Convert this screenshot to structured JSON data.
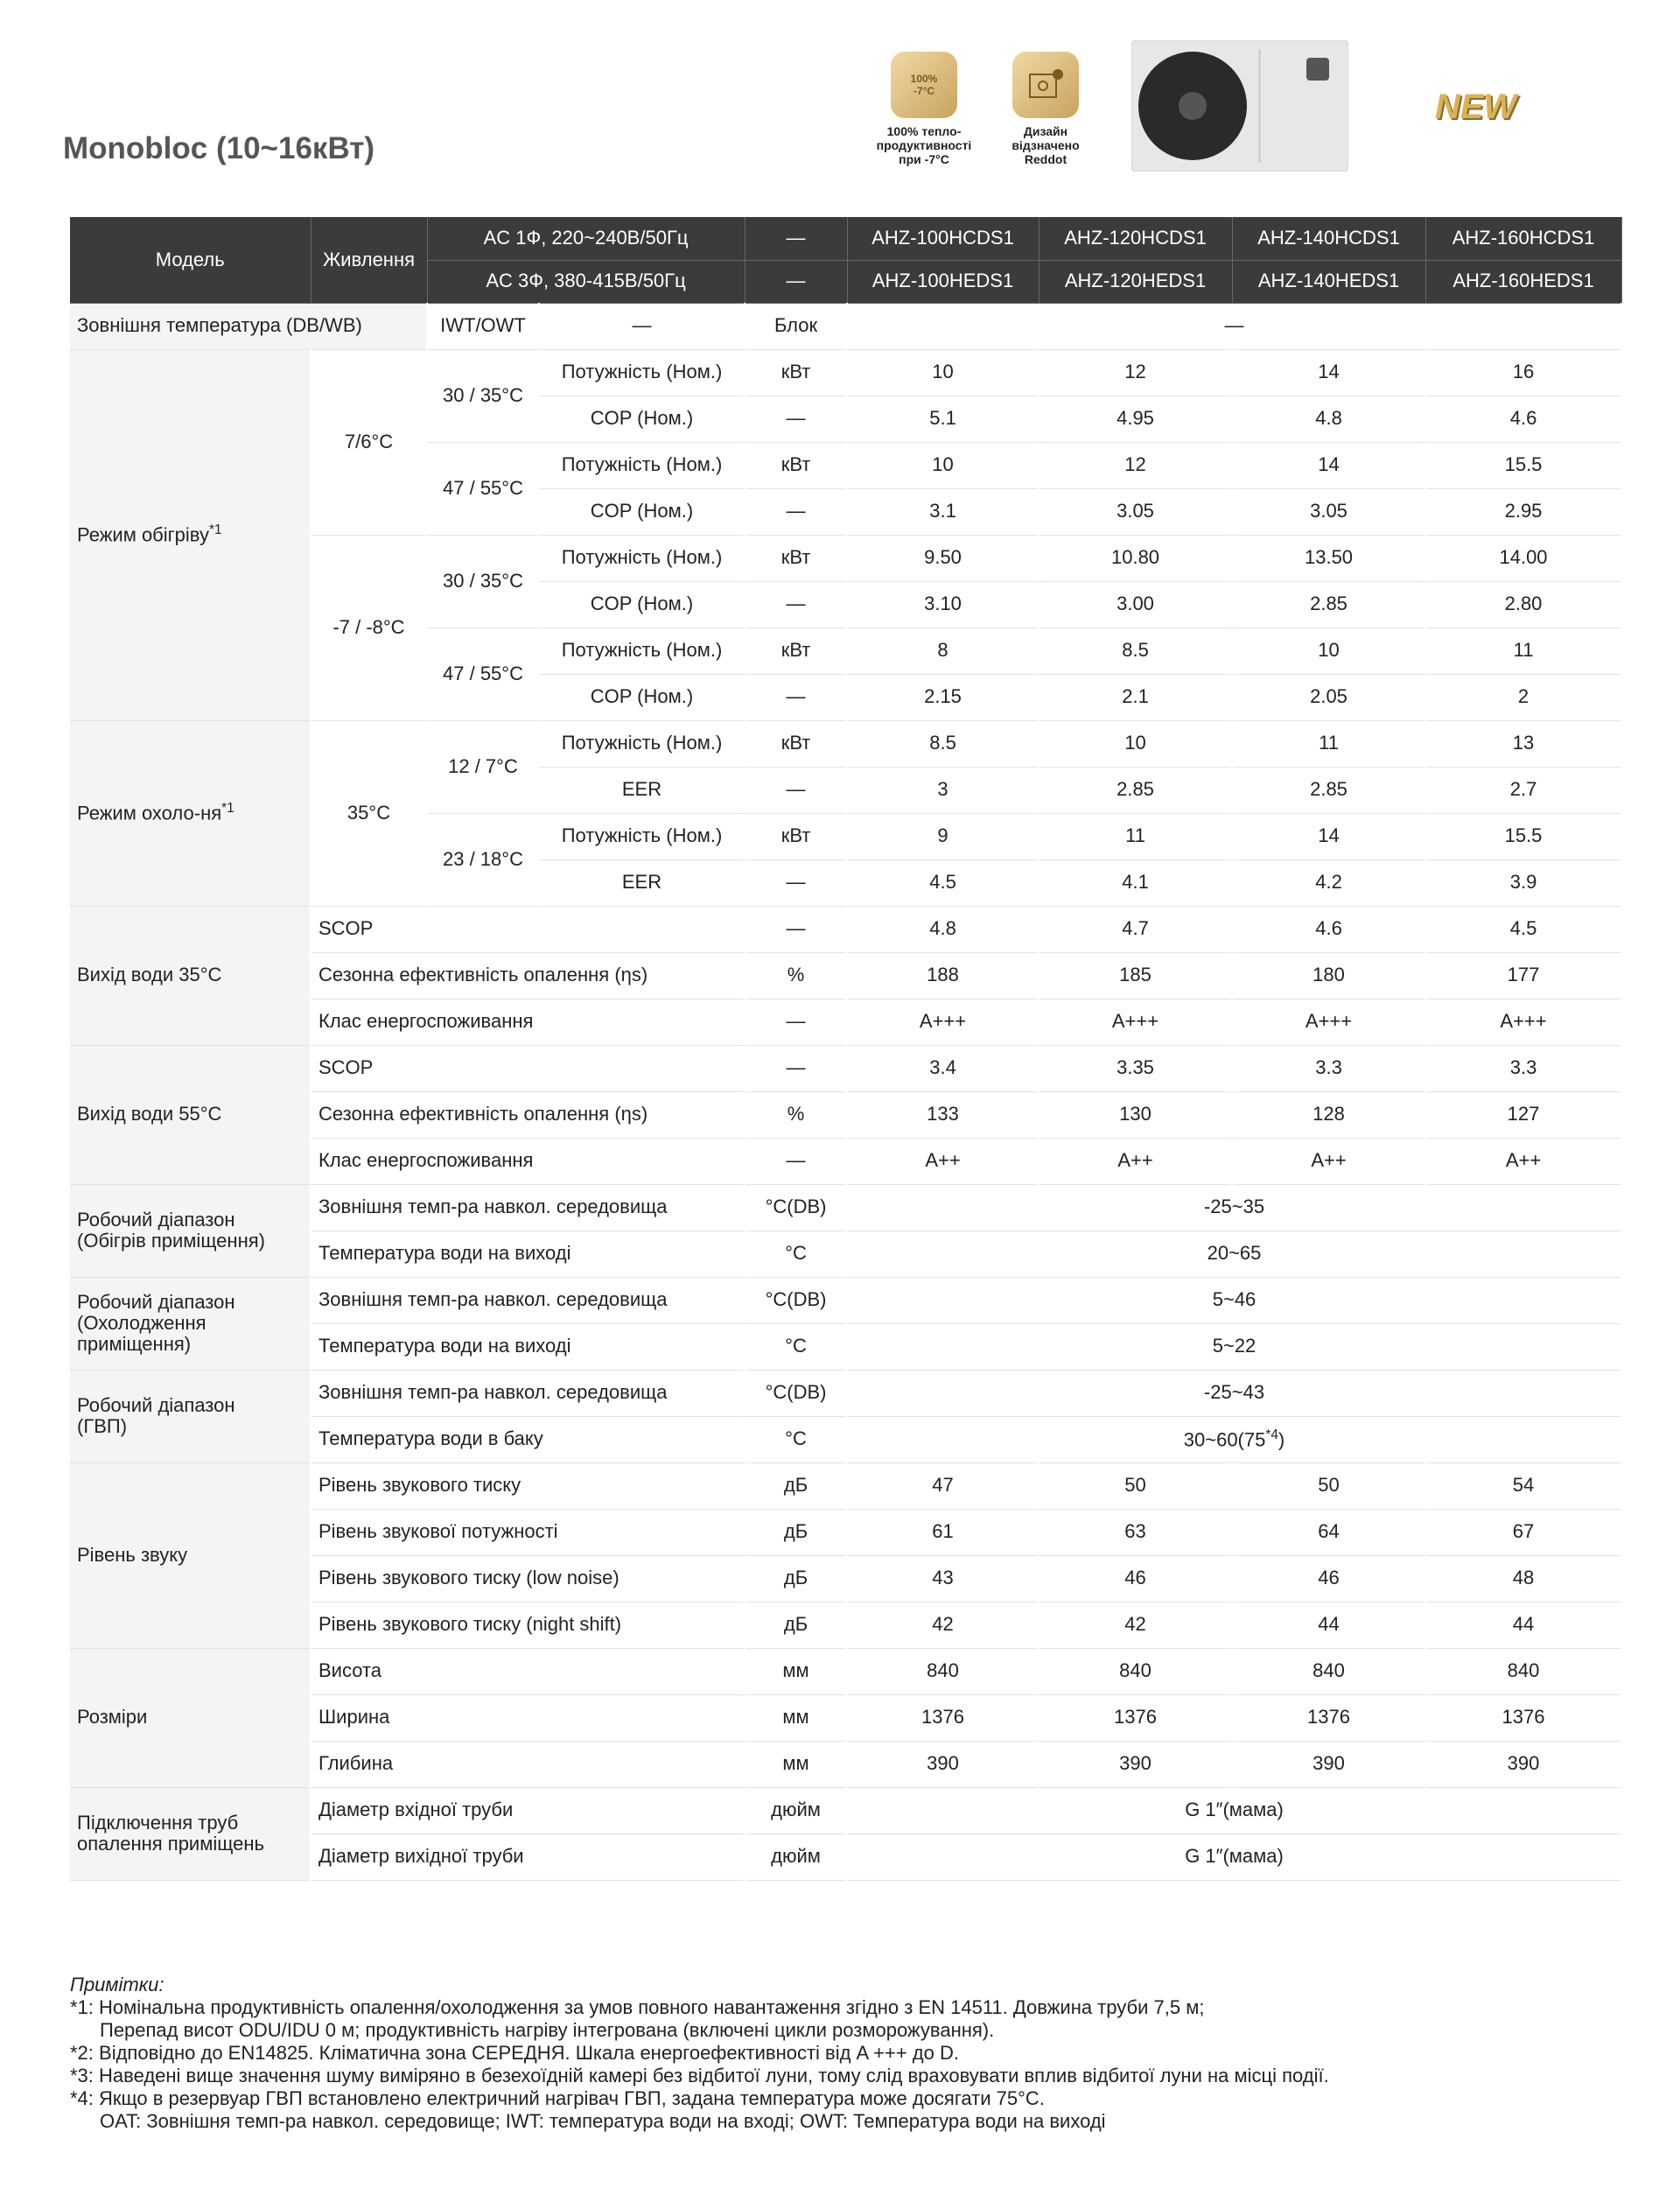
{
  "header": {
    "title": "Monobloc (10~16кВт)",
    "badges": [
      {
        "icon": [
          "100%",
          "-7°C"
        ],
        "caption": "100% тепло-\nпродуктивності\nпри -7°C"
      },
      {
        "icon": [],
        "caption": "Дизайн\nвідзначено\nReddot"
      }
    ],
    "new_label": "NEW"
  },
  "table": {
    "head": [
      [
        "Модель",
        "Живлення",
        "AC 1Ф, 220~240В/50Гц",
        "—",
        "AHZ-100HCDS1",
        "AHZ-120HCDS1",
        "AHZ-140HCDS1",
        "AHZ-160HCDS1"
      ],
      [
        "AC 3Ф, 380-415В/50Гц",
        "—",
        "AHZ-100HEDS1",
        "AHZ-120HEDS1",
        "AHZ-140HEDS1",
        "AHZ-160HEDS1"
      ]
    ],
    "rows": [
      [
        "Зовнішня температура (DB/WB)",
        "IWT/OWT",
        "—",
        "Блок",
        "—"
      ],
      [
        {
          "text": "Режим обігріву",
          "note": "*1"
        },
        "7/6°C",
        "30 / 35°C",
        "Потужність (Ном.)",
        "кВт",
        "10",
        "12",
        "14",
        "16"
      ],
      [
        "COP (Ном.)",
        "—",
        "5.1",
        "4.95",
        "4.8",
        "4.6"
      ],
      [
        "47 / 55°C",
        "Потужність (Ном.)",
        "кВт",
        "10",
        "12",
        "14",
        "15.5"
      ],
      [
        "COP (Ном.)",
        "—",
        "3.1",
        "3.05",
        "3.05",
        "2.95"
      ],
      [
        "-7 / -8°C",
        "30 / 35°C",
        "Потужність (Ном.)",
        "кВт",
        "9.50",
        "10.80",
        "13.50",
        "14.00"
      ],
      [
        "COP (Ном.)",
        "—",
        "3.10",
        "3.00",
        "2.85",
        "2.80"
      ],
      [
        "47 / 55°C",
        "Потужність (Ном.)",
        "кВт",
        "8",
        "8.5",
        "10",
        "11"
      ],
      [
        "COP (Ном.)",
        "—",
        "2.15",
        "2.1",
        "2.05",
        "2"
      ],
      [
        {
          "text": "Режим охоло-ня",
          "note": "*1"
        },
        "35°C",
        "12 / 7°C",
        "Потужність (Ном.)",
        "кВт",
        "8.5",
        "10",
        "11",
        "13"
      ],
      [
        "EER",
        "—",
        "3",
        "2.85",
        "2.85",
        "2.7"
      ],
      [
        "23 / 18°C",
        "Потужність (Ном.)",
        "кВт",
        "9",
        "11",
        "14",
        "15.5"
      ],
      [
        "EER",
        "—",
        "4.5",
        "4.1",
        "4.2",
        "3.9"
      ],
      [
        "Вихід води 35°C",
        "SCOP",
        "—",
        "4.8",
        "4.7",
        "4.6",
        "4.5"
      ],
      [
        "Сезонна ефективність опалення (ηs)",
        "%",
        "188",
        "185",
        "180",
        "177"
      ],
      [
        "Клас енергоспоживання",
        "—",
        "A+++",
        "A+++",
        "A+++",
        "A+++"
      ],
      [
        "Вихід води 55°C",
        "SCOP",
        "—",
        "3.4",
        "3.35",
        "3.3",
        "3.3"
      ],
      [
        "Сезонна ефективність опалення (ηs)",
        "%",
        "133",
        "130",
        "128",
        "127"
      ],
      [
        "Клас енергоспоживання",
        "—",
        "A++",
        "A++",
        "A++",
        "A++"
      ],
      [
        "Робочий діапазон\n (Обігрів приміщення)",
        "Зовнішня темп-ра навкол. середовища",
        "°C(DB)",
        "-25~35"
      ],
      [
        "Температура води на виході",
        "°C",
        "20~65"
      ],
      [
        "Робочий діапазон\n(Охолодження\nприміщення)",
        "Зовнішня темп-ра навкол. середовища",
        "°C(DB)",
        "5~46"
      ],
      [
        "Температура води на виході",
        "°C",
        "5~22"
      ],
      [
        "Робочий діапазон\n(ГВП)",
        "Зовнішня темп-ра навкол. середовища",
        "°C(DB)",
        "-25~43"
      ],
      [
        "Температура води в баку",
        "°C",
        {
          "text": "30~60(75",
          "note": "*4",
          "tail": ")"
        }
      ],
      [
        "Рівень звуку",
        "Рівень звукового тиску",
        "дБ",
        "47",
        "50",
        "50",
        "54"
      ],
      [
        "Рівень звукової потужності",
        "дБ",
        "61",
        "63",
        "64",
        "67"
      ],
      [
        "Рівень звукового тиску (low noise)",
        "дБ",
        "43",
        "46",
        "46",
        "48"
      ],
      [
        "Рівень звукового тиску (night shift)",
        "дБ",
        "42",
        "42",
        "44",
        "44"
      ],
      [
        "Розміри",
        "Висота",
        "мм",
        "840",
        "840",
        "840",
        "840"
      ],
      [
        "Ширина",
        "мм",
        "1376",
        "1376",
        "1376",
        "1376"
      ],
      [
        "Глибина",
        "мм",
        "390",
        "390",
        "390",
        "390"
      ],
      [
        "Підключення труб\nопалення приміщень",
        "Діаметр вхідної труби",
        "дюйм",
        "G 1″(мама)"
      ],
      [
        "Діаметр вихідної труби",
        "дюйм",
        "G 1″(мама)"
      ]
    ]
  },
  "notes": {
    "title": "Примітки:",
    "lines": [
      "*1: Номінальна продуктивність опалення/охолодження за умов повного навантаження згідно з EN 14511. Довжина труби 7,5 м;",
      "Перепад висот ODU/IDU 0 м; продуктивність нагріву інтегрована (включені цикли розморожування).",
      "*2: Відповідно до EN14825. Кліматична зона СЕРЕДНЯ. Шкала енергоефективності від A +++ до D.",
      "*3: Наведені вище значення шуму виміряно в безехоїдній камері без відбитої луни, тому слід враховувати вплив відбитої луни на місці події.",
      "*4: Якщо в резервуар ГВП встановлено електричний нагрівач ГВП, задана температура може досягати 75°C.",
      "OAT: Зовнішня темп-ра навкол. середовище; IWT: температура води на вході; OWT: Температура води на виході"
    ]
  }
}
